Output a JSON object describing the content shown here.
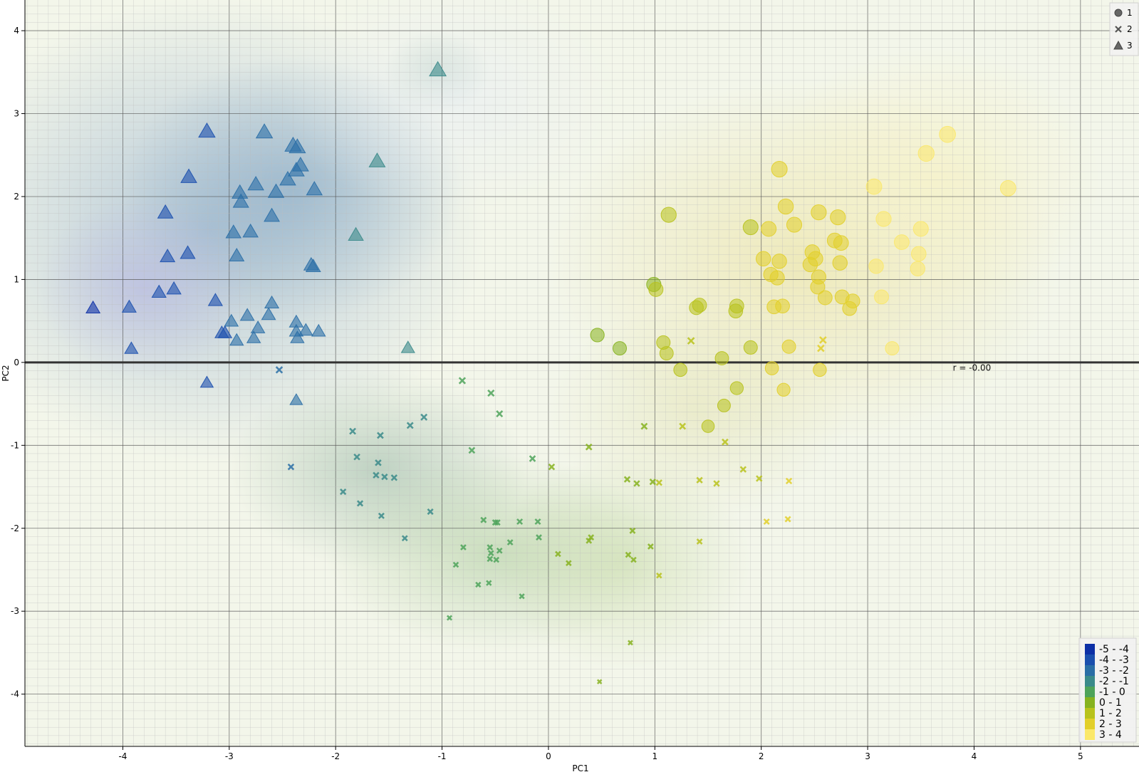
{
  "chart_data": {
    "type": "scatter",
    "title": "",
    "xlabel": "PC1",
    "ylabel": "PC2",
    "xlim": [
      -4.92,
      5.55
    ],
    "ylim": [
      -4.63,
      4.37
    ],
    "xticks": [
      -4,
      -3,
      -2,
      -1,
      0,
      1,
      2,
      3,
      4,
      5
    ],
    "yticks": [
      -4,
      -3,
      -2,
      -1,
      0,
      1,
      2,
      3,
      4
    ],
    "grid": "major and minor",
    "regression_line": {
      "label": "r = -0.00",
      "y": 0.0,
      "label_x": 3.8,
      "label_y": -0.1
    },
    "symbol_legend": {
      "position": "top-right",
      "entries": [
        {
          "label": "1",
          "marker": "circle"
        },
        {
          "label": "2",
          "marker": "x"
        },
        {
          "label": "3",
          "marker": "triangle"
        }
      ]
    },
    "color_legend": {
      "position": "bottom-right",
      "bins": [
        {
          "label": "-5 - -4",
          "color": "#0c2fa6"
        },
        {
          "label": "-4 - -3",
          "color": "#1a4fae"
        },
        {
          "label": "-3 - -2",
          "color": "#2a6ea6"
        },
        {
          "label": "-2 - -1",
          "color": "#3a8a8a"
        },
        {
          "label": "-1 - 0",
          "color": "#4ea35a"
        },
        {
          "label": "0 - 1",
          "color": "#86b21f"
        },
        {
          "label": "1 - 2",
          "color": "#b8c21c"
        },
        {
          "label": "2 - 3",
          "color": "#e2cf2a"
        },
        {
          "label": "3 - 4",
          "color": "#fbe86a"
        }
      ]
    },
    "series": [
      {
        "name": "1",
        "marker": "circle",
        "points": [
          [
            3.75,
            2.75
          ],
          [
            3.55,
            2.52
          ],
          [
            4.32,
            2.1
          ],
          [
            2.17,
            2.33
          ],
          [
            3.06,
            2.12
          ],
          [
            2.23,
            1.88
          ],
          [
            2.54,
            1.81
          ],
          [
            2.72,
            1.75
          ],
          [
            3.15,
            1.73
          ],
          [
            1.13,
            1.78
          ],
          [
            2.31,
            1.66
          ],
          [
            1.9,
            1.63
          ],
          [
            2.07,
            1.61
          ],
          [
            3.5,
            1.61
          ],
          [
            2.69,
            1.47
          ],
          [
            2.75,
            1.44
          ],
          [
            3.32,
            1.45
          ],
          [
            2.48,
            1.33
          ],
          [
            3.48,
            1.31
          ],
          [
            2.02,
            1.25
          ],
          [
            2.17,
            1.22
          ],
          [
            2.51,
            1.25
          ],
          [
            2.74,
            1.2
          ],
          [
            2.46,
            1.18
          ],
          [
            3.08,
            1.16
          ],
          [
            3.47,
            1.13
          ],
          [
            2.09,
            1.06
          ],
          [
            2.15,
            1.02
          ],
          [
            2.54,
            1.03
          ],
          [
            0.99,
            0.94
          ],
          [
            1.01,
            0.88
          ],
          [
            2.53,
            0.91
          ],
          [
            2.6,
            0.78
          ],
          [
            2.76,
            0.79
          ],
          [
            2.86,
            0.74
          ],
          [
            3.13,
            0.79
          ],
          [
            1.39,
            0.66
          ],
          [
            1.42,
            0.69
          ],
          [
            1.77,
            0.68
          ],
          [
            1.76,
            0.62
          ],
          [
            2.12,
            0.67
          ],
          [
            2.2,
            0.68
          ],
          [
            2.83,
            0.65
          ],
          [
            0.46,
            0.33
          ],
          [
            1.08,
            0.24
          ],
          [
            0.67,
            0.17
          ],
          [
            1.11,
            0.11
          ],
          [
            1.9,
            0.18
          ],
          [
            2.26,
            0.19
          ],
          [
            3.23,
            0.17
          ],
          [
            1.63,
            0.05
          ],
          [
            1.24,
            -0.09
          ],
          [
            2.1,
            -0.07
          ],
          [
            2.55,
            -0.09
          ],
          [
            1.77,
            -0.31
          ],
          [
            2.21,
            -0.33
          ],
          [
            1.65,
            -0.52
          ],
          [
            1.5,
            -0.77
          ]
        ]
      },
      {
        "name": "2",
        "marker": "x",
        "points": [
          [
            1.34,
            0.26
          ],
          [
            2.58,
            0.27
          ],
          [
            2.56,
            0.17
          ],
          [
            -2.53,
            -0.09
          ],
          [
            -0.81,
            -0.22
          ],
          [
            -0.54,
            -0.37
          ],
          [
            -0.46,
            -0.62
          ],
          [
            -1.17,
            -0.66
          ],
          [
            -1.3,
            -0.76
          ],
          [
            -1.84,
            -0.83
          ],
          [
            -1.58,
            -0.88
          ],
          [
            0.9,
            -0.77
          ],
          [
            1.26,
            -0.77
          ],
          [
            1.66,
            -0.96
          ],
          [
            0.38,
            -1.02
          ],
          [
            -0.72,
            -1.06
          ],
          [
            -1.8,
            -1.14
          ],
          [
            -0.15,
            -1.16
          ],
          [
            -1.6,
            -1.21
          ],
          [
            0.03,
            -1.26
          ],
          [
            -2.42,
            -1.26
          ],
          [
            -1.62,
            -1.36
          ],
          [
            -1.54,
            -1.38
          ],
          [
            -1.45,
            -1.39
          ],
          [
            1.83,
            -1.29
          ],
          [
            0.74,
            -1.41
          ],
          [
            0.83,
            -1.46
          ],
          [
            0.98,
            -1.44
          ],
          [
            1.04,
            -1.45
          ],
          [
            1.42,
            -1.42
          ],
          [
            1.58,
            -1.46
          ],
          [
            1.98,
            -1.4
          ],
          [
            2.26,
            -1.43
          ],
          [
            -1.93,
            -1.56
          ],
          [
            -1.77,
            -1.7
          ],
          [
            -1.11,
            -1.8
          ],
          [
            -1.57,
            -1.85
          ],
          [
            -0.61,
            -1.9
          ],
          [
            -0.5,
            -1.93
          ],
          [
            -0.48,
            -1.93
          ],
          [
            -0.27,
            -1.92
          ],
          [
            -0.1,
            -1.92
          ],
          [
            2.05,
            -1.92
          ],
          [
            2.25,
            -1.89
          ],
          [
            -1.35,
            -2.12
          ],
          [
            -0.09,
            -2.11
          ],
          [
            0.4,
            -2.11
          ],
          [
            0.38,
            -2.15
          ],
          [
            0.79,
            -2.03
          ],
          [
            -0.36,
            -2.17
          ],
          [
            -0.8,
            -2.23
          ],
          [
            -0.55,
            -2.23
          ],
          [
            -0.46,
            -2.27
          ],
          [
            -0.54,
            -2.3
          ],
          [
            0.96,
            -2.22
          ],
          [
            1.42,
            -2.16
          ],
          [
            0.09,
            -2.31
          ],
          [
            0.75,
            -2.32
          ],
          [
            -0.55,
            -2.37
          ],
          [
            -0.49,
            -2.38
          ],
          [
            0.8,
            -2.38
          ],
          [
            0.19,
            -2.42
          ],
          [
            -0.87,
            -2.44
          ],
          [
            1.04,
            -2.57
          ],
          [
            -0.66,
            -2.68
          ],
          [
            -0.56,
            -2.66
          ],
          [
            -0.25,
            -2.82
          ],
          [
            -0.93,
            -3.08
          ],
          [
            0.77,
            -3.38
          ],
          [
            0.48,
            -3.85
          ]
        ]
      },
      {
        "name": "3",
        "marker": "triangle",
        "points": [
          [
            -1.04,
            3.52
          ],
          [
            -3.21,
            2.78
          ],
          [
            -2.67,
            2.77
          ],
          [
            -2.4,
            2.61
          ],
          [
            -2.36,
            2.59
          ],
          [
            -1.61,
            2.42
          ],
          [
            -2.33,
            2.37
          ],
          [
            -2.37,
            2.31
          ],
          [
            -3.38,
            2.23
          ],
          [
            -2.45,
            2.2
          ],
          [
            -2.75,
            2.14
          ],
          [
            -2.2,
            2.08
          ],
          [
            -2.56,
            2.05
          ],
          [
            -2.9,
            2.04
          ],
          [
            -2.89,
            1.93
          ],
          [
            -3.6,
            1.8
          ],
          [
            -2.6,
            1.76
          ],
          [
            -2.96,
            1.56
          ],
          [
            -2.8,
            1.57
          ],
          [
            -1.81,
            1.53
          ],
          [
            -3.58,
            1.27
          ],
          [
            -3.39,
            1.31
          ],
          [
            -2.93,
            1.28
          ],
          [
            -2.23,
            1.17
          ],
          [
            -2.21,
            1.15
          ],
          [
            -3.52,
            0.88
          ],
          [
            -3.66,
            0.84
          ],
          [
            -3.13,
            0.74
          ],
          [
            -2.6,
            0.71
          ],
          [
            -4.28,
            0.65
          ],
          [
            -3.94,
            0.66
          ],
          [
            -2.83,
            0.56
          ],
          [
            -2.63,
            0.57
          ],
          [
            -2.98,
            0.49
          ],
          [
            -2.37,
            0.48
          ],
          [
            -2.73,
            0.41
          ],
          [
            -3.07,
            0.35
          ],
          [
            -3.04,
            0.35
          ],
          [
            -2.37,
            0.37
          ],
          [
            -2.28,
            0.38
          ],
          [
            -2.16,
            0.37
          ],
          [
            -2.93,
            0.26
          ],
          [
            -2.77,
            0.29
          ],
          [
            -2.36,
            0.29
          ],
          [
            -3.92,
            0.16
          ],
          [
            -1.32,
            0.17
          ],
          [
            -3.21,
            -0.25
          ],
          [
            -2.37,
            -0.46
          ]
        ]
      }
    ]
  }
}
